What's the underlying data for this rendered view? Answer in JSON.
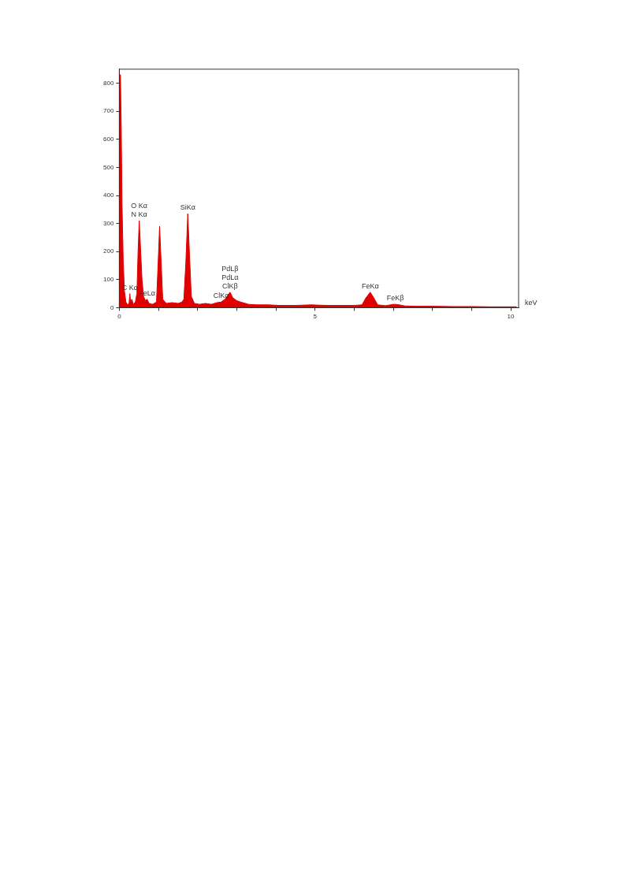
{
  "chart_data": {
    "type": "area",
    "xlabel": "keV",
    "x": [
      0,
      0.03,
      0.05,
      0.07,
      0.1,
      0.13,
      0.17,
      0.21,
      0.25,
      0.27,
      0.29,
      0.32,
      0.36,
      0.41,
      0.45,
      0.48,
      0.51,
      0.54,
      0.58,
      0.62,
      0.67,
      0.71,
      0.76,
      0.85,
      0.95,
      0.99,
      1.03,
      1.07,
      1.11,
      1.2,
      1.35,
      1.5,
      1.6,
      1.65,
      1.7,
      1.75,
      1.79,
      1.84,
      1.92,
      2.05,
      2.2,
      2.35,
      2.5,
      2.6,
      2.7,
      2.75,
      2.83,
      2.9,
      3.0,
      3.1,
      3.3,
      3.5,
      3.8,
      4.1,
      4.5,
      4.9,
      5.3,
      5.7,
      6.0,
      6.2,
      6.3,
      6.41,
      6.5,
      6.6,
      6.8,
      7.0,
      7.05,
      7.15,
      7.3,
      7.6,
      8.0,
      8.5,
      9.0,
      9.5,
      10.0,
      10.15
    ],
    "series": [
      {
        "color": "#e00000",
        "values": [
          830,
          830,
          640,
          370,
          170,
          60,
          20,
          10,
          15,
          50,
          20,
          30,
          12,
          20,
          50,
          200,
          310,
          220,
          100,
          40,
          25,
          30,
          15,
          12,
          20,
          150,
          290,
          160,
          30,
          15,
          18,
          15,
          20,
          30,
          160,
          335,
          200,
          40,
          15,
          12,
          15,
          12,
          18,
          20,
          30,
          40,
          55,
          35,
          25,
          20,
          12,
          10,
          10,
          8,
          8,
          10,
          8,
          8,
          8,
          10,
          35,
          55,
          35,
          10,
          7,
          12,
          12,
          10,
          6,
          5,
          5,
          4,
          4,
          3,
          3,
          3
        ]
      }
    ],
    "xlim": [
      0,
      10.2
    ],
    "xticks": [
      0,
      {
        "value": 1,
        "label": null
      },
      {
        "value": 2,
        "label": null
      },
      {
        "value": 3,
        "label": null
      },
      {
        "value": 4,
        "label": null
      },
      5,
      {
        "value": 6,
        "label": null
      },
      {
        "value": 7,
        "label": null
      },
      {
        "value": 8,
        "label": null
      },
      {
        "value": 9,
        "label": null
      },
      10
    ],
    "ylim": [
      0,
      850
    ],
    "yticks": [
      0,
      100,
      200,
      300,
      400,
      500,
      600,
      700,
      800
    ],
    "grid": false,
    "annotations": [
      {
        "text": "N Kα",
        "x": 0.51,
        "y": 310
      },
      {
        "text": "O Kα",
        "x": 0.51,
        "y": 310
      },
      {
        "text": "SiKα",
        "x": 1.75,
        "y": 335
      },
      {
        "text": "C Kα",
        "x": 0.27,
        "y": 50
      },
      {
        "text": "FeLα",
        "x": 0.71,
        "y": 30
      },
      {
        "text": "ClKβ",
        "x": 2.83,
        "y": 55
      },
      {
        "text": "PdLα",
        "x": 2.83,
        "y": 55
      },
      "PdLβ",
      {
        "text": "ClKα",
        "x": 2.6,
        "y": 20
      },
      {
        "text": "FeKα",
        "x": 6.41,
        "y": 55
      },
      {
        "text": "FeKβ",
        "x": 7.05,
        "y": 12
      }
    ]
  }
}
